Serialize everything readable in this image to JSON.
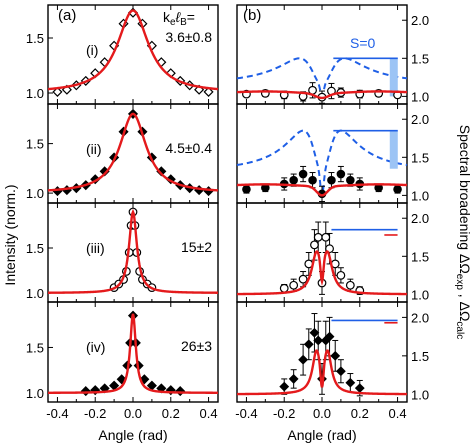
{
  "figure": {
    "panel_a_label": "(a)",
    "panel_b_label": "(b)",
    "kl_header": "k",
    "kl_sub_e": "e",
    "kl_ell": "ℓ",
    "kl_sub_b": "B",
    "kl_equals": "=",
    "s0_label": "S=0",
    "ylabel_left": "Intensity (norm.)",
    "ylabel_right_main": "Spectral broadening ΔΩ",
    "ylabel_right_sub1": "exp",
    "ylabel_right_sep": " , ΔΩ",
    "ylabel_right_sub2": "calc",
    "xlabel_left": "Angle (rad)",
    "xlabel_right": "Angle (rad)",
    "colors": {
      "fit": "#e41a1c",
      "calc": "#1f5fe6",
      "band": "#9cc4f5",
      "data": "#000000"
    }
  },
  "chart_data": [
    {
      "type": "scatter",
      "panel": "(a)",
      "row": "(i)",
      "annotation": "3.6±0.8",
      "marker": "open-diamond",
      "x": [
        -0.4,
        -0.35,
        -0.3,
        -0.25,
        -0.2,
        -0.15,
        -0.1,
        -0.05,
        0,
        0.05,
        0.1,
        0.15,
        0.2,
        0.25,
        0.3,
        0.35,
        0.4
      ],
      "y": [
        1.01,
        1.03,
        1.07,
        1.11,
        1.18,
        1.28,
        1.43,
        1.63,
        1.73,
        1.63,
        1.43,
        1.28,
        1.18,
        1.11,
        1.07,
        1.03,
        1.01
      ],
      "fit_width": 0.1,
      "fit_peak": 1.75,
      "xlim": [
        -0.45,
        0.45
      ],
      "ylim": [
        0.9,
        1.8
      ],
      "yticks": [
        1.0,
        1.5
      ]
    },
    {
      "type": "scatter",
      "panel": "(a)",
      "row": "(ii)",
      "annotation": "4.5±0.4",
      "marker": "filled-diamond",
      "x": [
        -0.4,
        -0.35,
        -0.3,
        -0.25,
        -0.2,
        -0.15,
        -0.1,
        -0.05,
        0,
        0.05,
        0.1,
        0.15,
        0.2,
        0.25,
        0.3,
        0.35,
        0.4
      ],
      "y": [
        1.02,
        1.03,
        1.05,
        1.08,
        1.14,
        1.22,
        1.36,
        1.62,
        1.8,
        1.62,
        1.36,
        1.22,
        1.14,
        1.08,
        1.05,
        1.03,
        1.02
      ],
      "fit_width": 0.085,
      "fit_peak": 1.8,
      "xlim": [
        -0.45,
        0.45
      ],
      "ylim": [
        0.9,
        1.9
      ],
      "yticks": [
        1.0,
        1.5
      ]
    },
    {
      "type": "scatter",
      "panel": "(a)",
      "row": "(iii)",
      "annotation": "15±2",
      "marker": "open-circle",
      "x": [
        -0.1,
        -0.075,
        -0.05,
        -0.035,
        -0.02,
        -0.01,
        0,
        0.01,
        0.02,
        0.035,
        0.05,
        0.075,
        0.1
      ],
      "y": [
        1.06,
        1.1,
        1.15,
        1.24,
        1.45,
        1.75,
        1.9,
        1.75,
        1.45,
        1.24,
        1.15,
        1.1,
        1.06
      ],
      "fit_width": 0.025,
      "fit_peak": 1.9,
      "xlim": [
        -0.45,
        0.45
      ],
      "ylim": [
        0.9,
        2.0
      ],
      "yticks": [
        1.0,
        1.5
      ]
    },
    {
      "type": "scatter",
      "panel": "(a)",
      "row": "(iv)",
      "annotation": "26±3",
      "marker": "filled-diamond",
      "x": [
        -0.25,
        -0.2,
        -0.15,
        -0.1,
        -0.06,
        -0.03,
        -0.015,
        0,
        0.015,
        0.03,
        0.06,
        0.1,
        0.15,
        0.2,
        0.25
      ],
      "y": [
        1.02,
        1.03,
        1.05,
        1.08,
        1.15,
        1.3,
        1.55,
        1.85,
        1.55,
        1.3,
        1.15,
        1.08,
        1.05,
        1.03,
        1.02
      ],
      "fit_width": 0.018,
      "fit_peak": 1.87,
      "xlim": [
        -0.45,
        0.45
      ],
      "ylim": [
        0.9,
        2.0
      ],
      "yticks": [
        1.0,
        1.5
      ]
    },
    {
      "type": "scatter",
      "panel": "(b)",
      "row": "(i)",
      "marker": "open-circle",
      "x": [
        -0.4,
        -0.3,
        -0.2,
        -0.1,
        -0.05,
        0,
        0.05,
        0.1,
        0.2,
        0.3,
        0.4
      ],
      "y": [
        1.03,
        1.04,
        1.02,
        1.0,
        1.08,
        0.99,
        1.07,
        1.05,
        1.03,
        1.04,
        1.02
      ],
      "err": [
        0.03,
        0.04,
        0.05,
        0.06,
        0.1,
        0.08,
        0.1,
        0.06,
        0.05,
        0.04,
        0.03
      ],
      "fit_y0": 1.04,
      "fit_dip": 0.06,
      "fit_width": 0.05,
      "calc_base": 1.15,
      "calc_amp": 0.35,
      "calc_width": 0.12,
      "band_range": [
        1.0,
        1.5
      ],
      "band_x": 0.38,
      "xlim": [
        -0.45,
        0.45
      ],
      "ylim": [
        0.9,
        2.2
      ],
      "yticks": [
        1.0,
        1.5,
        2.0
      ]
    },
    {
      "type": "scatter",
      "panel": "(b)",
      "row": "(ii)",
      "marker": "filled-circle",
      "x": [
        -0.4,
        -0.3,
        -0.2,
        -0.15,
        -0.1,
        -0.05,
        0,
        0.05,
        0.1,
        0.15,
        0.2,
        0.3,
        0.4
      ],
      "y": [
        1.08,
        1.1,
        1.15,
        1.2,
        1.28,
        1.2,
        1.02,
        1.2,
        1.28,
        1.2,
        1.15,
        1.1,
        1.08
      ],
      "err": [
        0.05,
        0.05,
        0.08,
        0.08,
        0.1,
        0.1,
        0.1,
        0.1,
        0.1,
        0.08,
        0.08,
        0.05,
        0.05
      ],
      "fit_y0": 1.12,
      "fit_dip": 0.12,
      "fit_width": 0.04,
      "calc_base": 1.3,
      "calc_amp": 0.55,
      "calc_width": 0.1,
      "band_range": [
        1.35,
        1.85
      ],
      "band_x": 0.38,
      "xlim": [
        -0.45,
        0.45
      ],
      "ylim": [
        0.9,
        2.2
      ],
      "yticks": [
        1.0,
        1.5,
        2.0
      ]
    },
    {
      "type": "scatter",
      "panel": "(b)",
      "row": "(iii)",
      "marker": "open-circle",
      "x": [
        -0.2,
        -0.15,
        -0.1,
        -0.07,
        -0.04,
        -0.02,
        0,
        0.02,
        0.04,
        0.07,
        0.1,
        0.15,
        0.2
      ],
      "y": [
        1.08,
        1.12,
        1.2,
        1.4,
        1.65,
        1.75,
        1.15,
        1.75,
        1.6,
        1.4,
        1.25,
        1.12,
        1.05
      ],
      "err": [
        0.05,
        0.08,
        0.1,
        0.15,
        0.2,
        0.2,
        0.15,
        0.2,
        0.2,
        0.15,
        0.1,
        0.08,
        0.05
      ],
      "fit_peak": 1.85,
      "fit_center": 0.03,
      "fit_width": 0.03,
      "ref_line": 1.85,
      "ref_short": 1.78,
      "xlim": [
        -0.45,
        0.45
      ],
      "ylim": [
        0.9,
        2.2
      ],
      "yticks": [
        1.0,
        1.5,
        2.0
      ]
    },
    {
      "type": "scatter",
      "panel": "(b)",
      "row": "(iv)",
      "marker": "filled-diamond",
      "x": [
        -0.2,
        -0.15,
        -0.1,
        -0.07,
        -0.04,
        -0.02,
        0,
        0.02,
        0.04,
        0.07,
        0.1,
        0.15,
        0.2
      ],
      "y": [
        1.1,
        1.2,
        1.45,
        1.65,
        1.8,
        1.7,
        1.2,
        1.7,
        1.75,
        1.5,
        1.3,
        1.15,
        1.08
      ],
      "err": [
        0.1,
        0.12,
        0.2,
        0.2,
        0.25,
        0.25,
        0.2,
        0.25,
        0.25,
        0.2,
        0.15,
        0.12,
        0.1
      ],
      "fit_peak": 1.9,
      "fit_center": 0.03,
      "fit_width": 0.025,
      "ref_line": 1.96,
      "ref_short": 1.93,
      "xlim": [
        -0.45,
        0.45
      ],
      "ylim": [
        0.9,
        2.2
      ],
      "yticks": [
        1.0,
        1.5,
        2.0
      ]
    }
  ]
}
